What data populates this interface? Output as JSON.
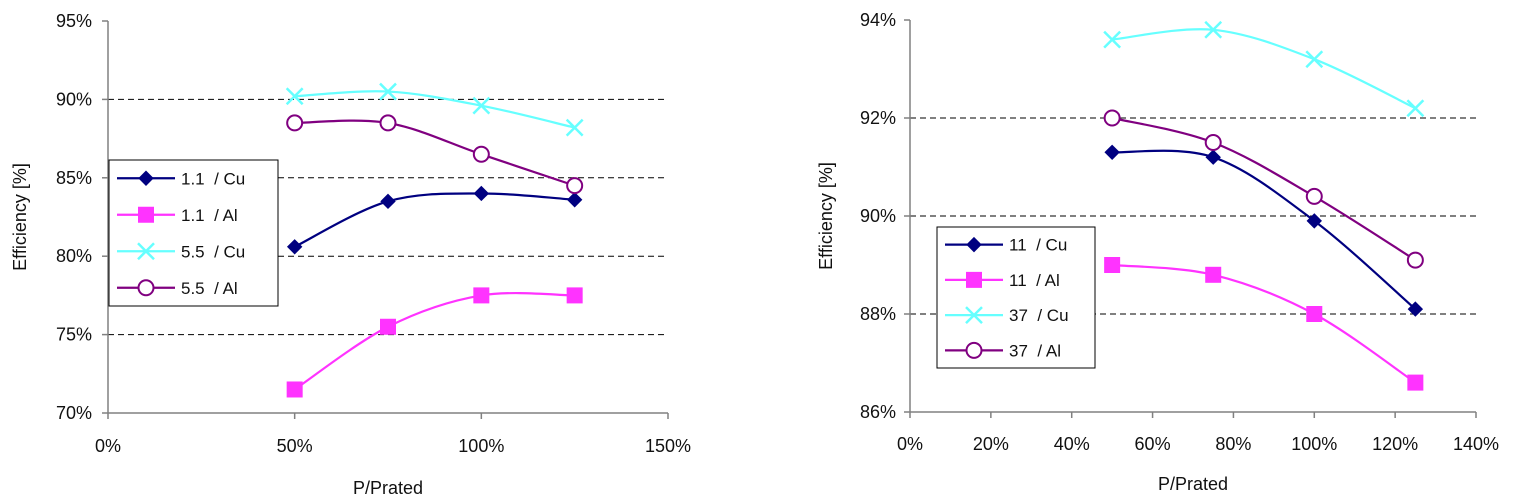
{
  "chart_data": [
    {
      "type": "line",
      "xlabel": "P/Prated",
      "ylabel": "Efficiency [%]",
      "xlim": [
        0,
        150
      ],
      "ylim": [
        70,
        95
      ],
      "xticks": [
        0,
        50,
        100,
        150
      ],
      "yticks": [
        70,
        75,
        80,
        85,
        90,
        95
      ],
      "xtick_labels": [
        "0%",
        "50%",
        "100%",
        "150%"
      ],
      "ytick_labels": [
        "70%",
        "75%",
        "80%",
        "85%",
        "90%",
        "95%"
      ],
      "grid": "horizontal dashed",
      "legend_position": "left-middle",
      "series": [
        {
          "name": "1.1  / Cu",
          "color": "#000080",
          "marker": "diamond",
          "x": [
            50,
            75,
            100,
            125
          ],
          "y": [
            80.6,
            83.5,
            84.0,
            83.6
          ]
        },
        {
          "name": "1.1  / Al",
          "color": "#ff33ff",
          "marker": "square",
          "x": [
            50,
            75,
            100,
            125
          ],
          "y": [
            71.5,
            75.5,
            77.5,
            77.5
          ]
        },
        {
          "name": "5.5  / Cu",
          "color": "#66ffff",
          "marker": "x",
          "x": [
            50,
            75,
            100,
            125
          ],
          "y": [
            90.2,
            90.5,
            89.6,
            88.2
          ]
        },
        {
          "name": "5.5  / Al",
          "color": "#800080",
          "marker": "circle",
          "x": [
            50,
            75,
            100,
            125
          ],
          "y": [
            88.5,
            88.5,
            86.5,
            84.5
          ]
        }
      ]
    },
    {
      "type": "line",
      "xlabel": "P/Prated",
      "ylabel": "Efficiency [%]",
      "xlim": [
        0,
        140
      ],
      "ylim": [
        86,
        94
      ],
      "xticks": [
        0,
        20,
        40,
        60,
        80,
        100,
        120,
        140
      ],
      "yticks": [
        86,
        88,
        90,
        92,
        94
      ],
      "xtick_labels": [
        "0%",
        "20%",
        "40%",
        "60%",
        "80%",
        "100%",
        "120%",
        "140%"
      ],
      "ytick_labels": [
        "86%",
        "88%",
        "90%",
        "92%",
        "94%"
      ],
      "grid": "horizontal dashed",
      "legend_position": "bottom-left",
      "series": [
        {
          "name": "11  / Cu",
          "color": "#000080",
          "marker": "diamond",
          "x": [
            50,
            75,
            100,
            125
          ],
          "y": [
            91.3,
            91.2,
            89.9,
            88.1
          ]
        },
        {
          "name": "11  / Al",
          "color": "#ff33ff",
          "marker": "square",
          "x": [
            50,
            75,
            100,
            125
          ],
          "y": [
            89.0,
            88.8,
            88.0,
            86.6
          ]
        },
        {
          "name": "37  / Cu",
          "color": "#66ffff",
          "marker": "x",
          "x": [
            50,
            75,
            100,
            125
          ],
          "y": [
            93.6,
            93.8,
            93.2,
            92.2
          ]
        },
        {
          "name": "37  / Al",
          "color": "#800080",
          "marker": "circle",
          "x": [
            50,
            75,
            100,
            125
          ],
          "y": [
            92.0,
            91.5,
            90.4,
            89.1
          ]
        }
      ]
    }
  ]
}
